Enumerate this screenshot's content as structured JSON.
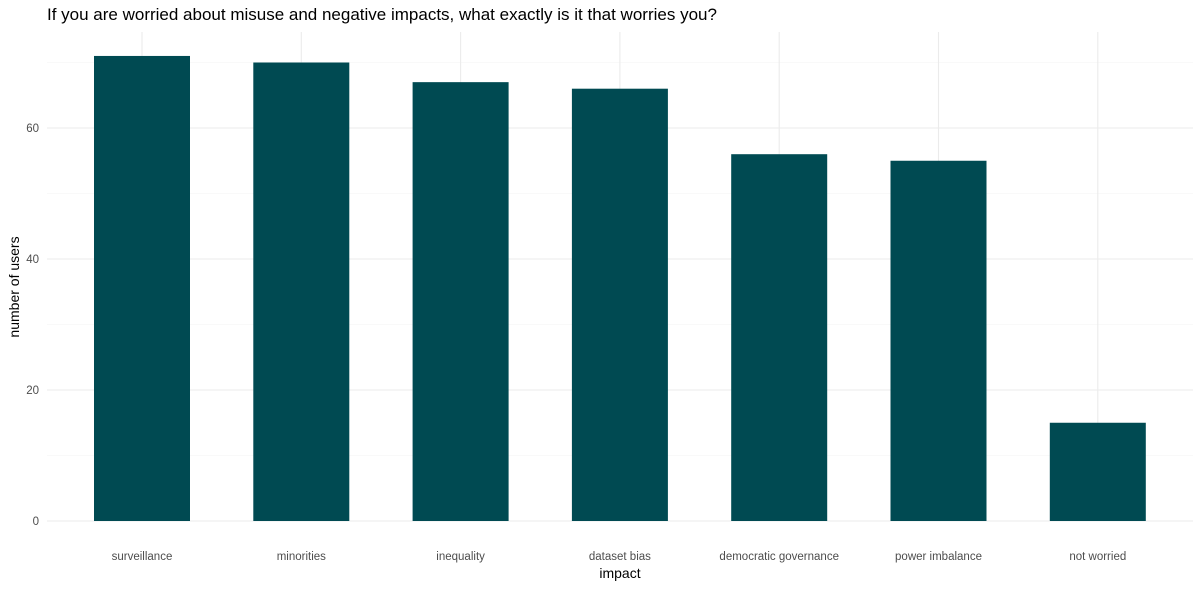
{
  "chart_data": {
    "type": "bar",
    "title": "If you are worried about misuse and negative impacts, what exactly is it that worries you?",
    "xlabel": "impact",
    "ylabel": "number of users",
    "categories": [
      "surveillance",
      "minorities",
      "inequality",
      "dataset bias",
      "democratic governance",
      "power imbalance",
      "not worried"
    ],
    "values": [
      71,
      70,
      67,
      66,
      56,
      55,
      15
    ],
    "ylim": [
      0,
      75
    ],
    "yticks": [
      0,
      20,
      40,
      60
    ],
    "grid": true,
    "bar_color": "#004a52"
  }
}
